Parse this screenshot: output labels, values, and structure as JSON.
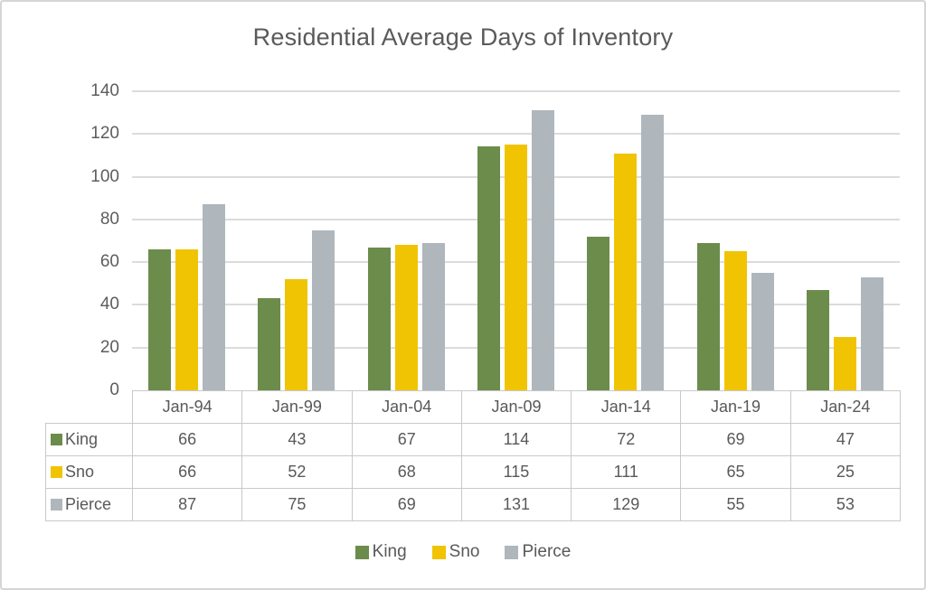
{
  "title": "Residential Average Days of Inventory",
  "chart_data": {
    "type": "bar",
    "title": "Residential Average Days of Inventory",
    "categories": [
      "Jan-94",
      "Jan-99",
      "Jan-04",
      "Jan-09",
      "Jan-14",
      "Jan-19",
      "Jan-24"
    ],
    "series": [
      {
        "name": "King",
        "color": "#6c8c4c",
        "values": [
          66,
          43,
          67,
          114,
          72,
          69,
          47
        ]
      },
      {
        "name": "Sno",
        "color": "#f0c403",
        "values": [
          66,
          52,
          68,
          115,
          111,
          65,
          25
        ]
      },
      {
        "name": "Pierce",
        "color": "#afb6bc",
        "values": [
          87,
          75,
          69,
          131,
          129,
          55,
          53
        ]
      }
    ],
    "xlabel": "",
    "ylabel": "",
    "ylim": [
      0,
      140
    ],
    "yticks": [
      0,
      20,
      40,
      60,
      80,
      100,
      120,
      140
    ],
    "grid": true,
    "legend_position": "bottom",
    "data_table_shown": true
  },
  "colors": {
    "title_text": "#5a5a5a",
    "axis_text": "#5d5d5d",
    "table_text": "#595959",
    "gridline": "#dcdcdc",
    "table_border": "#c9c9c9",
    "frame_border": "#d5d5d5",
    "background": "#ffffff"
  }
}
